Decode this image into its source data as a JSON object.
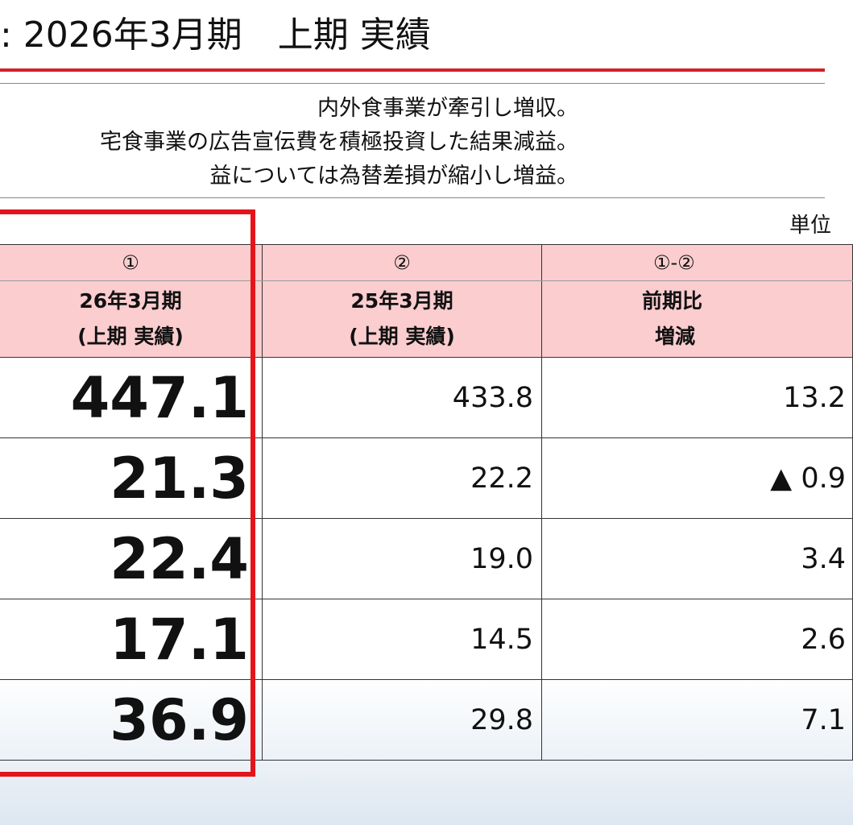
{
  "header": {
    "title": ": 2026年3月期　上期 実績"
  },
  "summary_bullets": [
    "内外食事業が牽引し増収。",
    "宅食事業の広告宣伝費を積極投資した結果減益。",
    "益については為替差損が縮小し増益。"
  ],
  "unit_label": "単位",
  "table": {
    "columns": [
      {
        "marker": "①",
        "label_line1": "26年3月期",
        "label_line2": "(上期 実績)"
      },
      {
        "marker": "②",
        "label_line1": "25年3月期",
        "label_line2": "(上期 実績)"
      },
      {
        "marker": "①-②",
        "label_line1": "前期比",
        "label_line2": "増減"
      }
    ],
    "rows": [
      {
        "current": "447.1",
        "previous": "433.8",
        "change": "13.2"
      },
      {
        "current": "21.3",
        "previous": "22.2",
        "change": "▲ 0.9"
      },
      {
        "current": "22.4",
        "previous": "19.0",
        "change": "3.4"
      },
      {
        "current": "17.1",
        "previous": "14.5",
        "change": "2.6"
      },
      {
        "current": "36.9",
        "previous": "29.8",
        "change": "7.1"
      }
    ]
  },
  "colors": {
    "accent_red": "#d61f26",
    "highlight_border": "#e4141b",
    "header_fill": "#fbcdcf"
  }
}
